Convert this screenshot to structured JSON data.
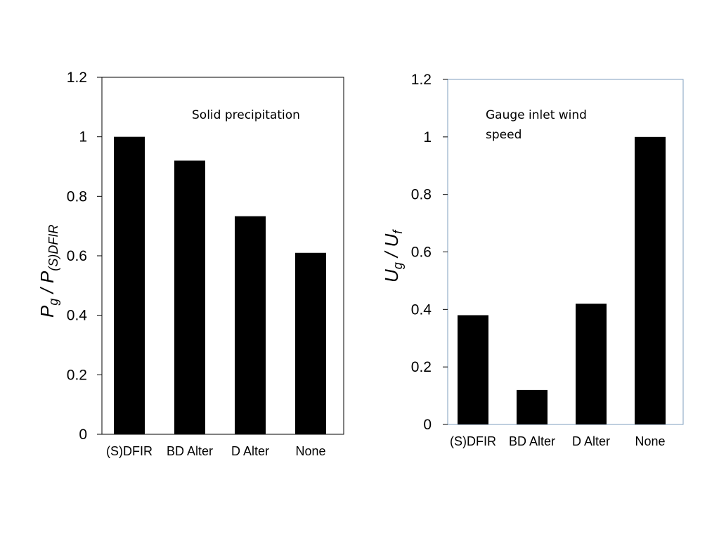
{
  "chart_data": [
    {
      "type": "bar",
      "title": "",
      "annotation": "Solid precipitation",
      "categories": [
        "(S)DFIR",
        "BD Alter",
        "D Alter",
        "None"
      ],
      "values": [
        1.0,
        0.92,
        0.733,
        0.61
      ],
      "ylabel": {
        "main": "P",
        "sub": "g",
        "sep": " / ",
        "main2": "P",
        "sub2": "(S)DFIR"
      },
      "xlabel": "",
      "ylim": [
        0,
        1.2
      ],
      "yticks": [
        "0",
        "0.2",
        "0.4",
        "0.6",
        "0.8",
        "1",
        "1.2"
      ],
      "bar_color": "#000000",
      "frame_color": "#000000",
      "grid": false
    },
    {
      "type": "bar",
      "title": "",
      "annotation_lines": [
        "Gauge inlet wind",
        "speed"
      ],
      "categories": [
        "(S)DFIR",
        "BD Alter",
        "D Alter",
        "None"
      ],
      "values": [
        0.38,
        0.12,
        0.42,
        1.0
      ],
      "ylabel": {
        "main": "U",
        "sub": "g",
        "sep": " / ",
        "main2": "U",
        "sub2": "f"
      },
      "xlabel": "",
      "ylim": [
        0,
        1.2
      ],
      "yticks": [
        "0",
        "0.2",
        "0.4",
        "0.6",
        "0.8",
        "1",
        "1.2"
      ],
      "bar_color": "#000000",
      "frame_color": "#7f9fbf",
      "grid": false
    }
  ]
}
